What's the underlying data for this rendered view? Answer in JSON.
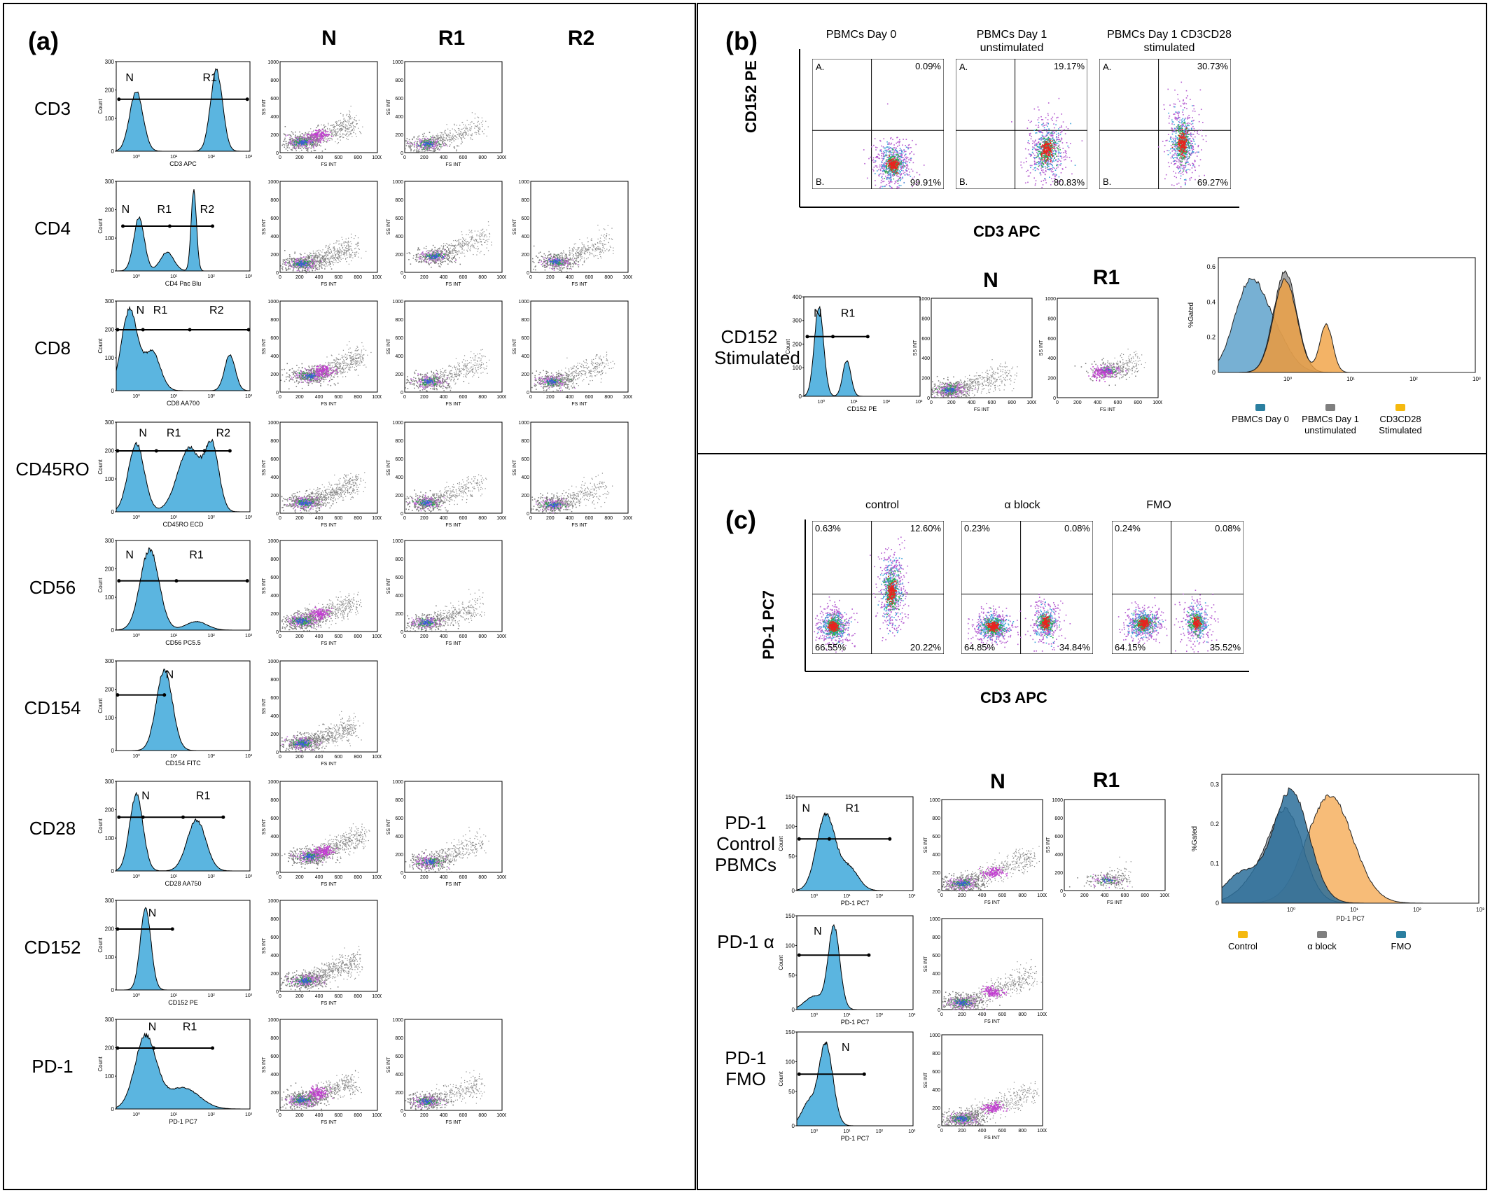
{
  "panel_a": {
    "label": "(a)",
    "col_headers": [
      "N",
      "R1",
      "R2"
    ],
    "rows": [
      {
        "marker": "CD3",
        "axis": "CD3 APC",
        "gates": [
          "N",
          "R1"
        ],
        "scatter_cols": 2
      },
      {
        "marker": "CD4",
        "axis": "CD4 Pac Blu",
        "gates": [
          "N",
          "R1",
          "R2"
        ],
        "scatter_cols": 3
      },
      {
        "marker": "CD8",
        "axis": "CD8 AA700",
        "gates": [
          "N",
          "R1",
          "R2"
        ],
        "scatter_cols": 3
      },
      {
        "marker": "CD45RO",
        "axis": "CD45RO ECD",
        "gates": [
          "N",
          "R1",
          "R2"
        ],
        "scatter_cols": 3
      },
      {
        "marker": "CD56",
        "axis": "CD56 PC5.5",
        "gates": [
          "N",
          "R1"
        ],
        "scatter_cols": 2
      },
      {
        "marker": "CD154",
        "axis": "CD154 FITC",
        "gates": [
          "N"
        ],
        "scatter_cols": 1
      },
      {
        "marker": "CD28",
        "axis": "CD28 AA750",
        "gates": [
          "N",
          "R1"
        ],
        "scatter_cols": 2
      },
      {
        "marker": "CD152",
        "axis": "CD152 PE",
        "gates": [
          "N"
        ],
        "scatter_cols": 1
      },
      {
        "marker": "PD-1",
        "axis": "PD-1 PC7",
        "gates": [
          "N",
          "R1"
        ],
        "scatter_cols": 2
      }
    ],
    "hist_ylabel": "Count",
    "scatter_xlabel": "FS INT",
    "scatter_ylabel": "SS INT"
  },
  "panel_b": {
    "label": "(b)",
    "ylabel": "CD152 PE",
    "xlabel": "CD3 APC",
    "quad_titles": [
      "PBMCs Day 0",
      "PBMCs Day 1 unstimulated",
      "PBMCs Day 1 CD3CD28 stimulated"
    ],
    "quad_corner_labels": [
      "A.",
      "B."
    ],
    "quad_values": [
      {
        "upper_right": "0.09%",
        "lower_right": "99.91%"
      },
      {
        "upper_right": "19.17%",
        "lower_right": "80.83%"
      },
      {
        "upper_right": "30.73%",
        "lower_right": "69.27%"
      }
    ],
    "row_label": "CD152 Stimulated",
    "hist_axis": "CD152 PE",
    "col_headers": [
      "N",
      "R1"
    ],
    "overlay_ylabel": "%Gated",
    "overlay_yticks": [
      "0.6",
      "0.4",
      "0.2",
      "0"
    ],
    "legend": [
      {
        "label": "PBMCs Day 0",
        "color": "#2b7fa0"
      },
      {
        "label": "PBMCs Day 1 unstimulated",
        "color": "#7f7f7f"
      },
      {
        "label": "CD3CD28 Stimulated",
        "color": "#f5b90f"
      }
    ]
  },
  "panel_c": {
    "label": "(c)",
    "ylabel": "PD-1 PC7",
    "xlabel": "CD3 APC",
    "quad_titles": [
      "control",
      "α block",
      "FMO"
    ],
    "quad_values": [
      {
        "upper_left": "0.63%",
        "upper_right": "12.60%",
        "lower_left": "66.55%",
        "lower_right": "20.22%"
      },
      {
        "upper_left": "0.23%",
        "upper_right": "0.08%",
        "lower_left": "64.85%",
        "lower_right": "34.84%"
      },
      {
        "upper_left": "0.24%",
        "upper_right": "0.08%",
        "lower_left": "64.15%",
        "lower_right": "35.52%"
      }
    ],
    "col_headers": [
      "N",
      "R1"
    ],
    "rows": [
      {
        "label": "PD-1 Control PBMCs",
        "gates": [
          "N",
          "R1"
        ]
      },
      {
        "label": "PD-1 α",
        "gates": [
          "N"
        ]
      },
      {
        "label": "PD-1 FMO",
        "gates": [
          "N"
        ]
      }
    ],
    "hist_axis": "PD-1 PC7",
    "overlay_ylabel": "%Gated",
    "overlay_xlabel": "PD-1 PC7",
    "overlay_yticks": [
      "0.3",
      "0.2",
      "0.1",
      "0"
    ],
    "legend": [
      {
        "label": "Control",
        "color": "#f5b90f"
      },
      {
        "label": "α  block",
        "color": "#7f7f7f"
      },
      {
        "label": "FMO",
        "color": "#2b7fa0"
      }
    ]
  }
}
